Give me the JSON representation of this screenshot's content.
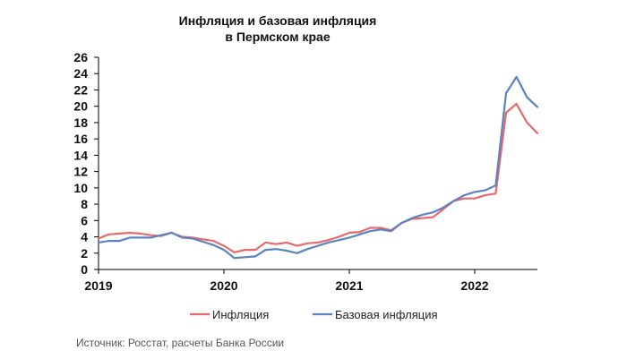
{
  "chart_data": {
    "type": "line",
    "title": "Инфляция и базовая инфляция",
    "subtitle": "в  Пермском крае",
    "xlabel": "",
    "ylabel": "",
    "ylim": [
      0,
      26
    ],
    "yticks": [
      "0",
      "2",
      "4",
      "6",
      "8",
      "10",
      "12",
      "14",
      "16",
      "18",
      "20",
      "22",
      "24",
      "26"
    ],
    "xlim": [
      2019.0,
      2022.5
    ],
    "xticks": [
      {
        "value": 2019,
        "label": "2019"
      },
      {
        "value": 2020,
        "label": "2020"
      },
      {
        "value": 2021,
        "label": "2021"
      },
      {
        "value": 2022,
        "label": "2022"
      }
    ],
    "grid": false,
    "legend_position": "bottom",
    "series": [
      {
        "name": "Инфляция",
        "color": "#e8696d",
        "x": [
          2019.0,
          2019.083,
          2019.167,
          2019.25,
          2019.333,
          2019.417,
          2019.5,
          2019.583,
          2019.667,
          2019.75,
          2019.833,
          2019.917,
          2020.0,
          2020.083,
          2020.167,
          2020.25,
          2020.333,
          2020.417,
          2020.5,
          2020.583,
          2020.667,
          2020.75,
          2020.833,
          2020.917,
          2021.0,
          2021.083,
          2021.167,
          2021.25,
          2021.333,
          2021.417,
          2021.5,
          2021.583,
          2021.667,
          2021.75,
          2021.833,
          2021.917,
          2022.0,
          2022.083,
          2022.167,
          2022.25,
          2022.333,
          2022.417,
          2022.5
        ],
        "values": [
          3.8,
          4.3,
          4.4,
          4.5,
          4.4,
          4.2,
          4.1,
          4.5,
          4.0,
          3.9,
          3.7,
          3.5,
          2.9,
          2.1,
          2.4,
          2.4,
          3.3,
          3.1,
          3.3,
          2.9,
          3.2,
          3.3,
          3.6,
          4.0,
          4.5,
          4.6,
          5.1,
          5.1,
          4.8,
          5.7,
          6.2,
          6.3,
          6.4,
          7.4,
          8.4,
          8.7,
          8.7,
          9.1,
          9.3,
          19.2,
          20.3,
          18.0,
          16.7
        ]
      },
      {
        "name": "Базовая инфляция",
        "color": "#5a84bf",
        "x": [
          2019.0,
          2019.083,
          2019.167,
          2019.25,
          2019.333,
          2019.417,
          2019.5,
          2019.583,
          2019.667,
          2019.75,
          2019.833,
          2019.917,
          2020.0,
          2020.083,
          2020.167,
          2020.25,
          2020.333,
          2020.417,
          2020.5,
          2020.583,
          2020.667,
          2020.75,
          2020.833,
          2020.917,
          2021.0,
          2021.083,
          2021.167,
          2021.25,
          2021.333,
          2021.417,
          2021.5,
          2021.583,
          2021.667,
          2021.75,
          2021.833,
          2021.917,
          2022.0,
          2022.083,
          2022.167,
          2022.25,
          2022.333,
          2022.417,
          2022.5
        ],
        "values": [
          3.3,
          3.5,
          3.5,
          3.9,
          3.9,
          3.9,
          4.2,
          4.5,
          3.9,
          3.8,
          3.4,
          3.0,
          2.4,
          1.4,
          1.5,
          1.6,
          2.4,
          2.5,
          2.3,
          2.0,
          2.5,
          2.9,
          3.3,
          3.6,
          3.9,
          4.3,
          4.7,
          4.9,
          4.7,
          5.7,
          6.3,
          6.7,
          7.0,
          7.6,
          8.4,
          9.1,
          9.5,
          9.7,
          10.3,
          21.6,
          23.6,
          21.1,
          19.9
        ]
      }
    ]
  },
  "source": "Источник: Росстат, расчеты Банка России"
}
